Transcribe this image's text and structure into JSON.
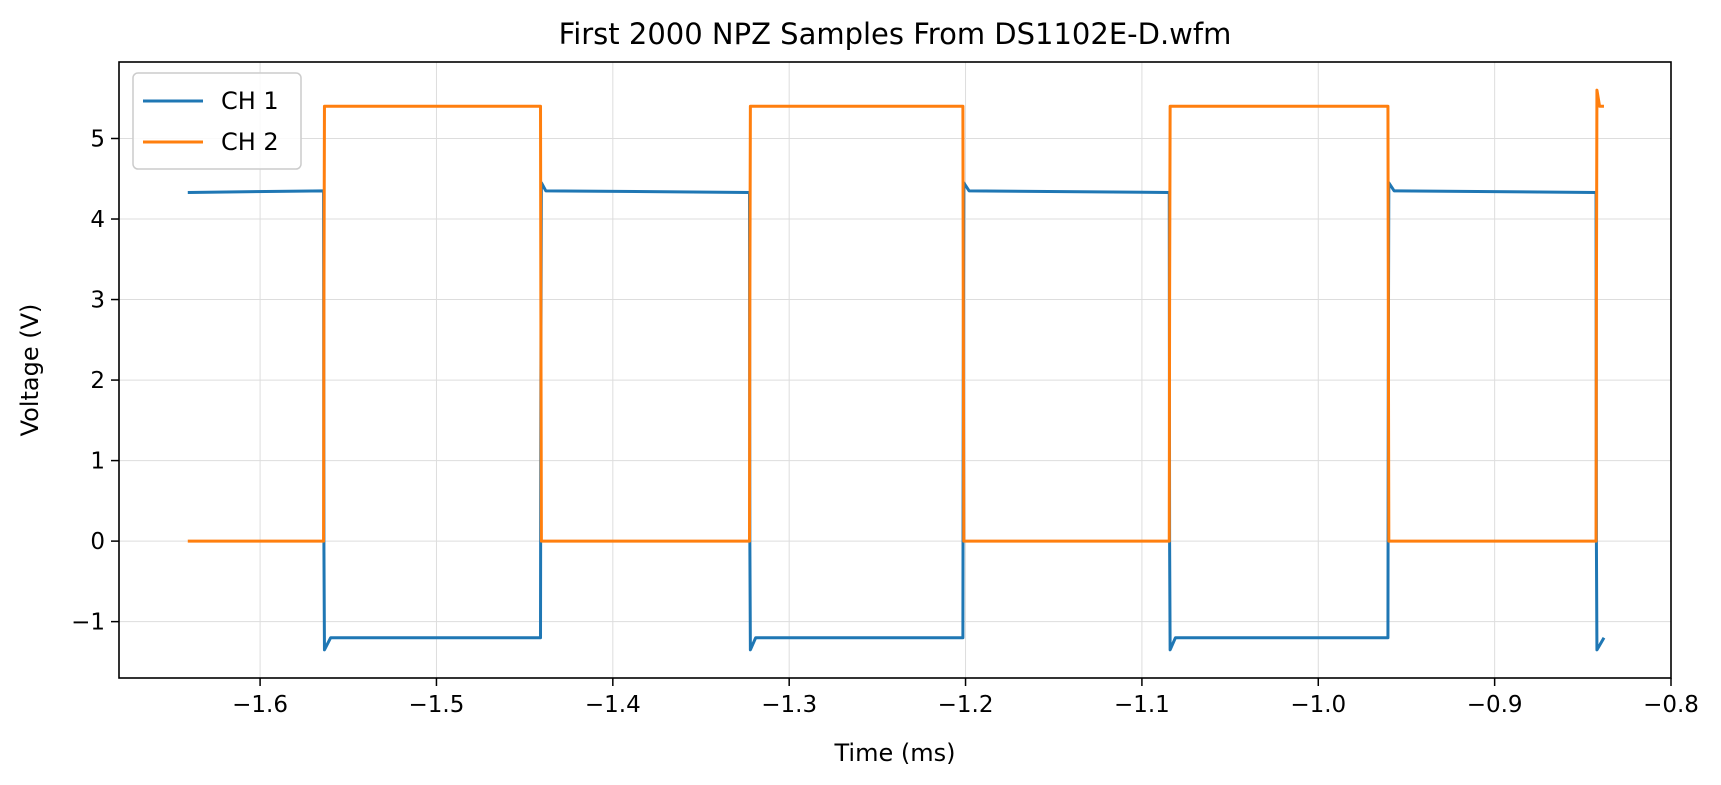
{
  "chart_data": {
    "type": "line",
    "title": "First 2000 NPZ Samples From DS1102E-D.wfm",
    "xlabel": "Time (ms)",
    "ylabel": "Voltage (V)",
    "xlim": [
      -1.68,
      -0.8
    ],
    "ylim": [
      -1.7,
      5.95
    ],
    "xticks": [
      -1.6,
      -1.5,
      -1.4,
      -1.3,
      -1.2,
      -1.1,
      -1.0,
      -0.9,
      -0.8
    ],
    "xtick_labels": [
      "−1.6",
      "−1.5",
      "−1.4",
      "−1.3",
      "−1.2",
      "−1.1",
      "−1.0",
      "−0.9",
      "−0.8"
    ],
    "yticks": [
      -1,
      0,
      1,
      2,
      3,
      4,
      5
    ],
    "ytick_labels": [
      "−1",
      "0",
      "1",
      "2",
      "3",
      "4",
      "5"
    ],
    "grid": true,
    "legend_position": "top-left",
    "colors": {
      "ch1": "#1f77b4",
      "ch2": "#ff7f0e"
    },
    "series": [
      {
        "name": "CH 1",
        "x": [
          -1.641,
          -1.564,
          -1.5638,
          -1.5635,
          -1.56,
          -1.441,
          -1.4408,
          -1.4405,
          -1.438,
          -1.3225,
          -1.3223,
          -1.322,
          -1.319,
          -1.2015,
          -1.2013,
          -1.201,
          -1.198,
          -1.0845,
          -1.0843,
          -1.084,
          -1.081,
          -0.9605,
          -0.9603,
          -0.96,
          -0.957,
          -0.8425,
          -0.8423,
          -0.842,
          -0.838
        ],
        "y": [
          4.33,
          4.35,
          -0.1,
          -1.35,
          -1.2,
          -1.2,
          2.0,
          4.45,
          4.35,
          4.33,
          0.0,
          -1.35,
          -1.2,
          -1.2,
          2.0,
          4.45,
          4.35,
          4.33,
          0.0,
          -1.35,
          -1.2,
          -1.2,
          2.0,
          4.45,
          4.35,
          4.33,
          0.0,
          -1.35,
          -1.2
        ]
      },
      {
        "name": "CH 2",
        "x": [
          -1.641,
          -1.564,
          -1.5638,
          -1.5635,
          -1.441,
          -1.4408,
          -1.4405,
          -1.3225,
          -1.3223,
          -1.322,
          -1.2015,
          -1.2013,
          -1.201,
          -1.0845,
          -1.0843,
          -1.084,
          -0.9605,
          -0.9603,
          -0.96,
          -0.8425,
          -0.8423,
          -0.842,
          -0.8405,
          -0.838
        ],
        "y": [
          0.0,
          0.0,
          3.0,
          5.4,
          5.4,
          3.0,
          0.0,
          0.0,
          3.0,
          5.4,
          5.4,
          3.0,
          0.0,
          0.0,
          3.0,
          5.4,
          5.4,
          3.0,
          0.0,
          0.0,
          3.0,
          5.6,
          5.4,
          5.4
        ]
      }
    ]
  }
}
